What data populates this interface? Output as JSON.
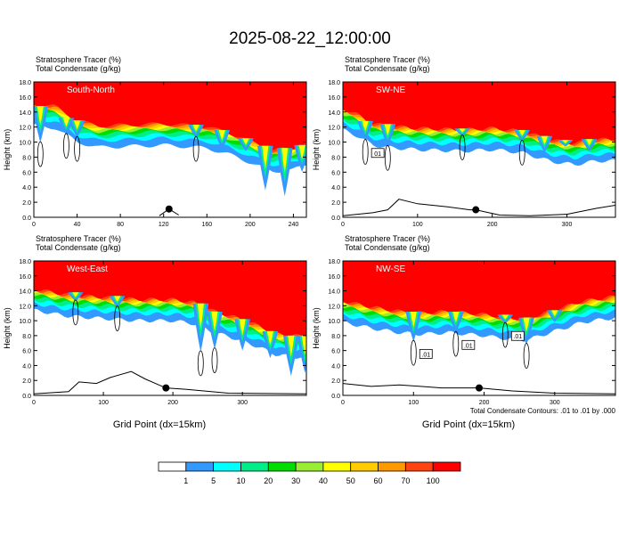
{
  "figure": {
    "title": "2025-08-22_12:00:00",
    "xlabel": "Grid Point (dx=15km)",
    "footnote": "Total Condensate Contours: .01 to .01 by .000"
  },
  "chart_data": [
    {
      "type": "heatmap",
      "panel_label": "South-North",
      "var_lines": [
        "Stratosphere Tracer   (%)",
        "Total Condensate   (g/kg)"
      ],
      "ylabel": "Height (km)",
      "ylim": [
        0,
        18
      ],
      "yticks": [
        0,
        2,
        4,
        6,
        8,
        10,
        12,
        14,
        16,
        18
      ],
      "xlim": [
        0,
        252
      ],
      "xticks": [
        0,
        40,
        80,
        120,
        160,
        200,
        240
      ],
      "show_xlabel": false,
      "contour_labels": [],
      "footnote": false,
      "tracer_base_km": [
        [
          0,
          15.2
        ],
        [
          20,
          14.9
        ],
        [
          40,
          13.0
        ],
        [
          60,
          12.3
        ],
        [
          80,
          12.4
        ],
        [
          120,
          12.6
        ],
        [
          160,
          12.2
        ],
        [
          180,
          11.4
        ],
        [
          200,
          10.3
        ],
        [
          220,
          9.1
        ],
        [
          240,
          9.3
        ],
        [
          252,
          10.0
        ]
      ],
      "intrusions": [
        [
          6,
          14.8,
          9.9
        ],
        [
          30,
          13.2,
          11.0
        ],
        [
          40,
          12.9,
          10.6
        ],
        [
          150,
          12.3,
          10.6
        ],
        [
          174,
          11.6,
          9.0
        ],
        [
          196,
          10.5,
          8.8
        ],
        [
          214,
          9.5,
          3.6
        ],
        [
          232,
          9.2,
          2.8
        ],
        [
          248,
          9.6,
          6.0
        ]
      ],
      "marker": {
        "x": 125,
        "y": 1.1
      },
      "terrain": [
        [
          116,
          0.2
        ],
        [
          125,
          1.1
        ],
        [
          134,
          0.3
        ]
      ]
    },
    {
      "type": "heatmap",
      "panel_label": "SW-NE",
      "var_lines": [
        "Stratosphere Tracer   (%)",
        "Total Condensate   (g/kg)"
      ],
      "ylabel": "Height (km)",
      "ylim": [
        0,
        18
      ],
      "yticks": [
        0,
        2,
        4,
        6,
        8,
        10,
        12,
        14,
        16,
        18
      ],
      "xlim": [
        0,
        365
      ],
      "xticks": [
        0,
        100,
        200,
        300
      ],
      "show_xlabel": false,
      "contour_labels": [
        "01"
      ],
      "footnote": false,
      "tracer_base_km": [
        [
          0,
          14.6
        ],
        [
          20,
          13.8
        ],
        [
          40,
          12.6
        ],
        [
          60,
          12.3
        ],
        [
          100,
          12.0
        ],
        [
          160,
          11.8
        ],
        [
          200,
          12.0
        ],
        [
          240,
          11.6
        ],
        [
          280,
          10.4
        ],
        [
          310,
          10.0
        ],
        [
          340,
          10.5
        ],
        [
          365,
          10.5
        ]
      ],
      "intrusions": [
        [
          30,
          12.8,
          10.2
        ],
        [
          60,
          12.4,
          9.4
        ],
        [
          160,
          11.8,
          10.8
        ],
        [
          240,
          11.6,
          10.1
        ],
        [
          270,
          10.8,
          8.6
        ],
        [
          298,
          10.3,
          9.4
        ],
        [
          330,
          10.4,
          8.8
        ]
      ],
      "marker": {
        "x": 178,
        "y": 1.0
      },
      "terrain": [
        [
          0,
          0.2
        ],
        [
          40,
          0.6
        ],
        [
          60,
          1.0
        ],
        [
          75,
          2.4
        ],
        [
          100,
          1.8
        ],
        [
          140,
          1.4
        ],
        [
          170,
          1.0
        ],
        [
          178,
          1.0
        ],
        [
          210,
          0.3
        ],
        [
          250,
          0.2
        ],
        [
          300,
          0.4
        ],
        [
          340,
          1.2
        ],
        [
          365,
          1.6
        ]
      ]
    },
    {
      "type": "heatmap",
      "panel_label": "West-East",
      "var_lines": [
        "Stratosphere Tracer   (%)",
        "Total Condensate   (g/kg)"
      ],
      "ylabel": "Height (km)",
      "ylim": [
        0,
        18
      ],
      "yticks": [
        0,
        2,
        4,
        6,
        8,
        10,
        12,
        14,
        16,
        18
      ],
      "xlim": [
        0,
        392
      ],
      "xticks": [
        0,
        100,
        200,
        300
      ],
      "show_xlabel": true,
      "contour_labels": [],
      "footnote": false,
      "tracer_base_km": [
        [
          0,
          14.4
        ],
        [
          50,
          13.6
        ],
        [
          100,
          13.3
        ],
        [
          150,
          13.0
        ],
        [
          200,
          13.0
        ],
        [
          230,
          12.6
        ],
        [
          260,
          11.4
        ],
        [
          290,
          10.6
        ],
        [
          320,
          9.6
        ],
        [
          350,
          8.4
        ],
        [
          392,
          8.0
        ]
      ],
      "intrusions": [
        [
          60,
          13.8,
          12.6
        ],
        [
          120,
          13.3,
          11.8
        ],
        [
          240,
          12.3,
          5.8
        ],
        [
          260,
          11.2,
          6.2
        ],
        [
          300,
          10.2,
          6.0
        ],
        [
          340,
          8.6,
          5.0
        ],
        [
          370,
          8.0,
          2.6
        ],
        [
          390,
          8.0,
          3.0
        ]
      ],
      "marker": {
        "x": 190,
        "y": 1.0
      },
      "terrain": [
        [
          0,
          0.2
        ],
        [
          50,
          0.5
        ],
        [
          65,
          1.8
        ],
        [
          90,
          1.6
        ],
        [
          110,
          2.4
        ],
        [
          140,
          3.2
        ],
        [
          160,
          2.2
        ],
        [
          180,
          1.4
        ],
        [
          190,
          1.0
        ],
        [
          220,
          0.8
        ],
        [
          280,
          0.3
        ],
        [
          392,
          0.2
        ]
      ]
    },
    {
      "type": "heatmap",
      "panel_label": "NW-SE",
      "var_lines": [
        "Stratosphere Tracer   (%)",
        "Total Condensate   (g/kg)"
      ],
      "ylabel": "Height (km)",
      "ylim": [
        0,
        18
      ],
      "yticks": [
        0,
        2,
        4,
        6,
        8,
        10,
        12,
        14,
        16,
        18
      ],
      "xlim": [
        0,
        386
      ],
      "xticks": [
        0,
        100,
        200,
        300
      ],
      "show_xlabel": true,
      "contour_labels": [
        ".01",
        ".01",
        ".01"
      ],
      "footnote": true,
      "tracer_base_km": [
        [
          0,
          12.8
        ],
        [
          40,
          12.0
        ],
        [
          80,
          11.4
        ],
        [
          110,
          11.2
        ],
        [
          150,
          11.4
        ],
        [
          200,
          11.0
        ],
        [
          230,
          10.6
        ],
        [
          260,
          10.4
        ],
        [
          300,
          11.6
        ],
        [
          340,
          12.8
        ],
        [
          386,
          13.4
        ]
      ],
      "intrusions": [
        [
          100,
          11.2,
          7.2
        ],
        [
          160,
          11.2,
          8.4
        ],
        [
          230,
          10.8,
          9.6
        ],
        [
          260,
          10.4,
          6.8
        ],
        [
          300,
          11.4,
          9.8
        ]
      ],
      "marker": {
        "x": 193,
        "y": 1.0
      },
      "terrain": [
        [
          0,
          1.6
        ],
        [
          40,
          1.2
        ],
        [
          80,
          1.4
        ],
        [
          110,
          1.2
        ],
        [
          140,
          1.0
        ],
        [
          193,
          1.0
        ],
        [
          240,
          0.6
        ],
        [
          300,
          0.3
        ],
        [
          386,
          0.2
        ]
      ]
    }
  ],
  "legend": {
    "colors": [
      "#ffffff",
      "#3399ff",
      "#00ffff",
      "#00ee88",
      "#00dd00",
      "#99ee33",
      "#ffff00",
      "#ffcc00",
      "#ff9900",
      "#ff4411",
      "#ff0000"
    ],
    "labels": [
      "1",
      "5",
      "10",
      "20",
      "30",
      "40",
      "50",
      "60",
      "70",
      "100"
    ]
  }
}
